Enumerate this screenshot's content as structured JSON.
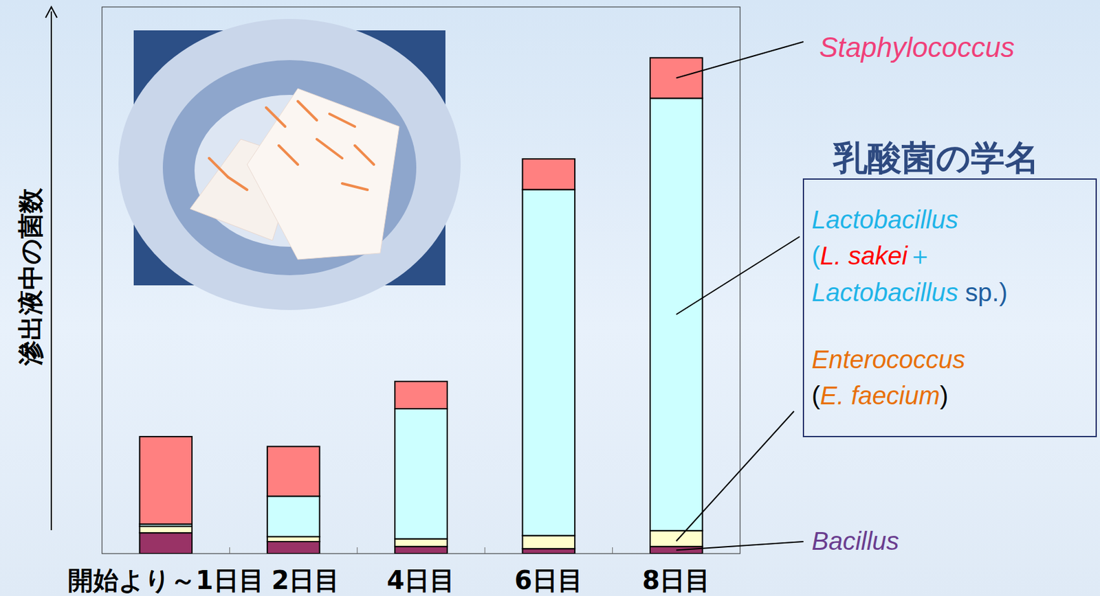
{
  "chart_data": {
    "type": "bar",
    "stacked": true,
    "y_label": "滲出液中の菌数",
    "categories": [
      "開始より～1日目",
      "2日目",
      "4日目",
      "6日目",
      "8日目"
    ],
    "series": [
      {
        "name": "Bacillus",
        "color": "#993366",
        "values": [
          3.8,
          2.2,
          1.3,
          0.9,
          1.3
        ]
      },
      {
        "name": "Enterococcus",
        "color": "#ffffcc",
        "values": [
          1.2,
          0.9,
          1.4,
          2.4,
          2.9
        ]
      },
      {
        "name": "Lactobacillus",
        "color": "#ccffff",
        "values": [
          0.4,
          7.4,
          23.8,
          63.3,
          79.1
        ]
      },
      {
        "name": "Staphylococcus",
        "color": "#ff8080",
        "values": [
          16.0,
          9.1,
          5.0,
          5.6,
          7.4
        ]
      }
    ],
    "ylim": [
      0,
      100
    ],
    "yticks": [],
    "tick_labels": "x",
    "grid": false,
    "legend_box": {
      "heading": "乳酸菌の学名",
      "lines": [
        [
          {
            "text": "(",
            "color": "#1fb4e8"
          },
          {
            "name": "L. sakei",
            "color": "#ff0000"
          },
          {
            "text": "＋",
            "color": "#1fb4e8"
          }
        ],
        [
          {
            "name": "Lactobacillus",
            "color": "#1fb4e8"
          },
          {
            "text": " sp.)",
            "color": "#1f5fa0"
          }
        ],
        [
          {
            "text": "(",
            "color": "#000000"
          },
          {
            "name": "E. faecium",
            "color": "#e8700a"
          },
          {
            "text": ")",
            "color": "#000000"
          }
        ]
      ]
    }
  }
}
